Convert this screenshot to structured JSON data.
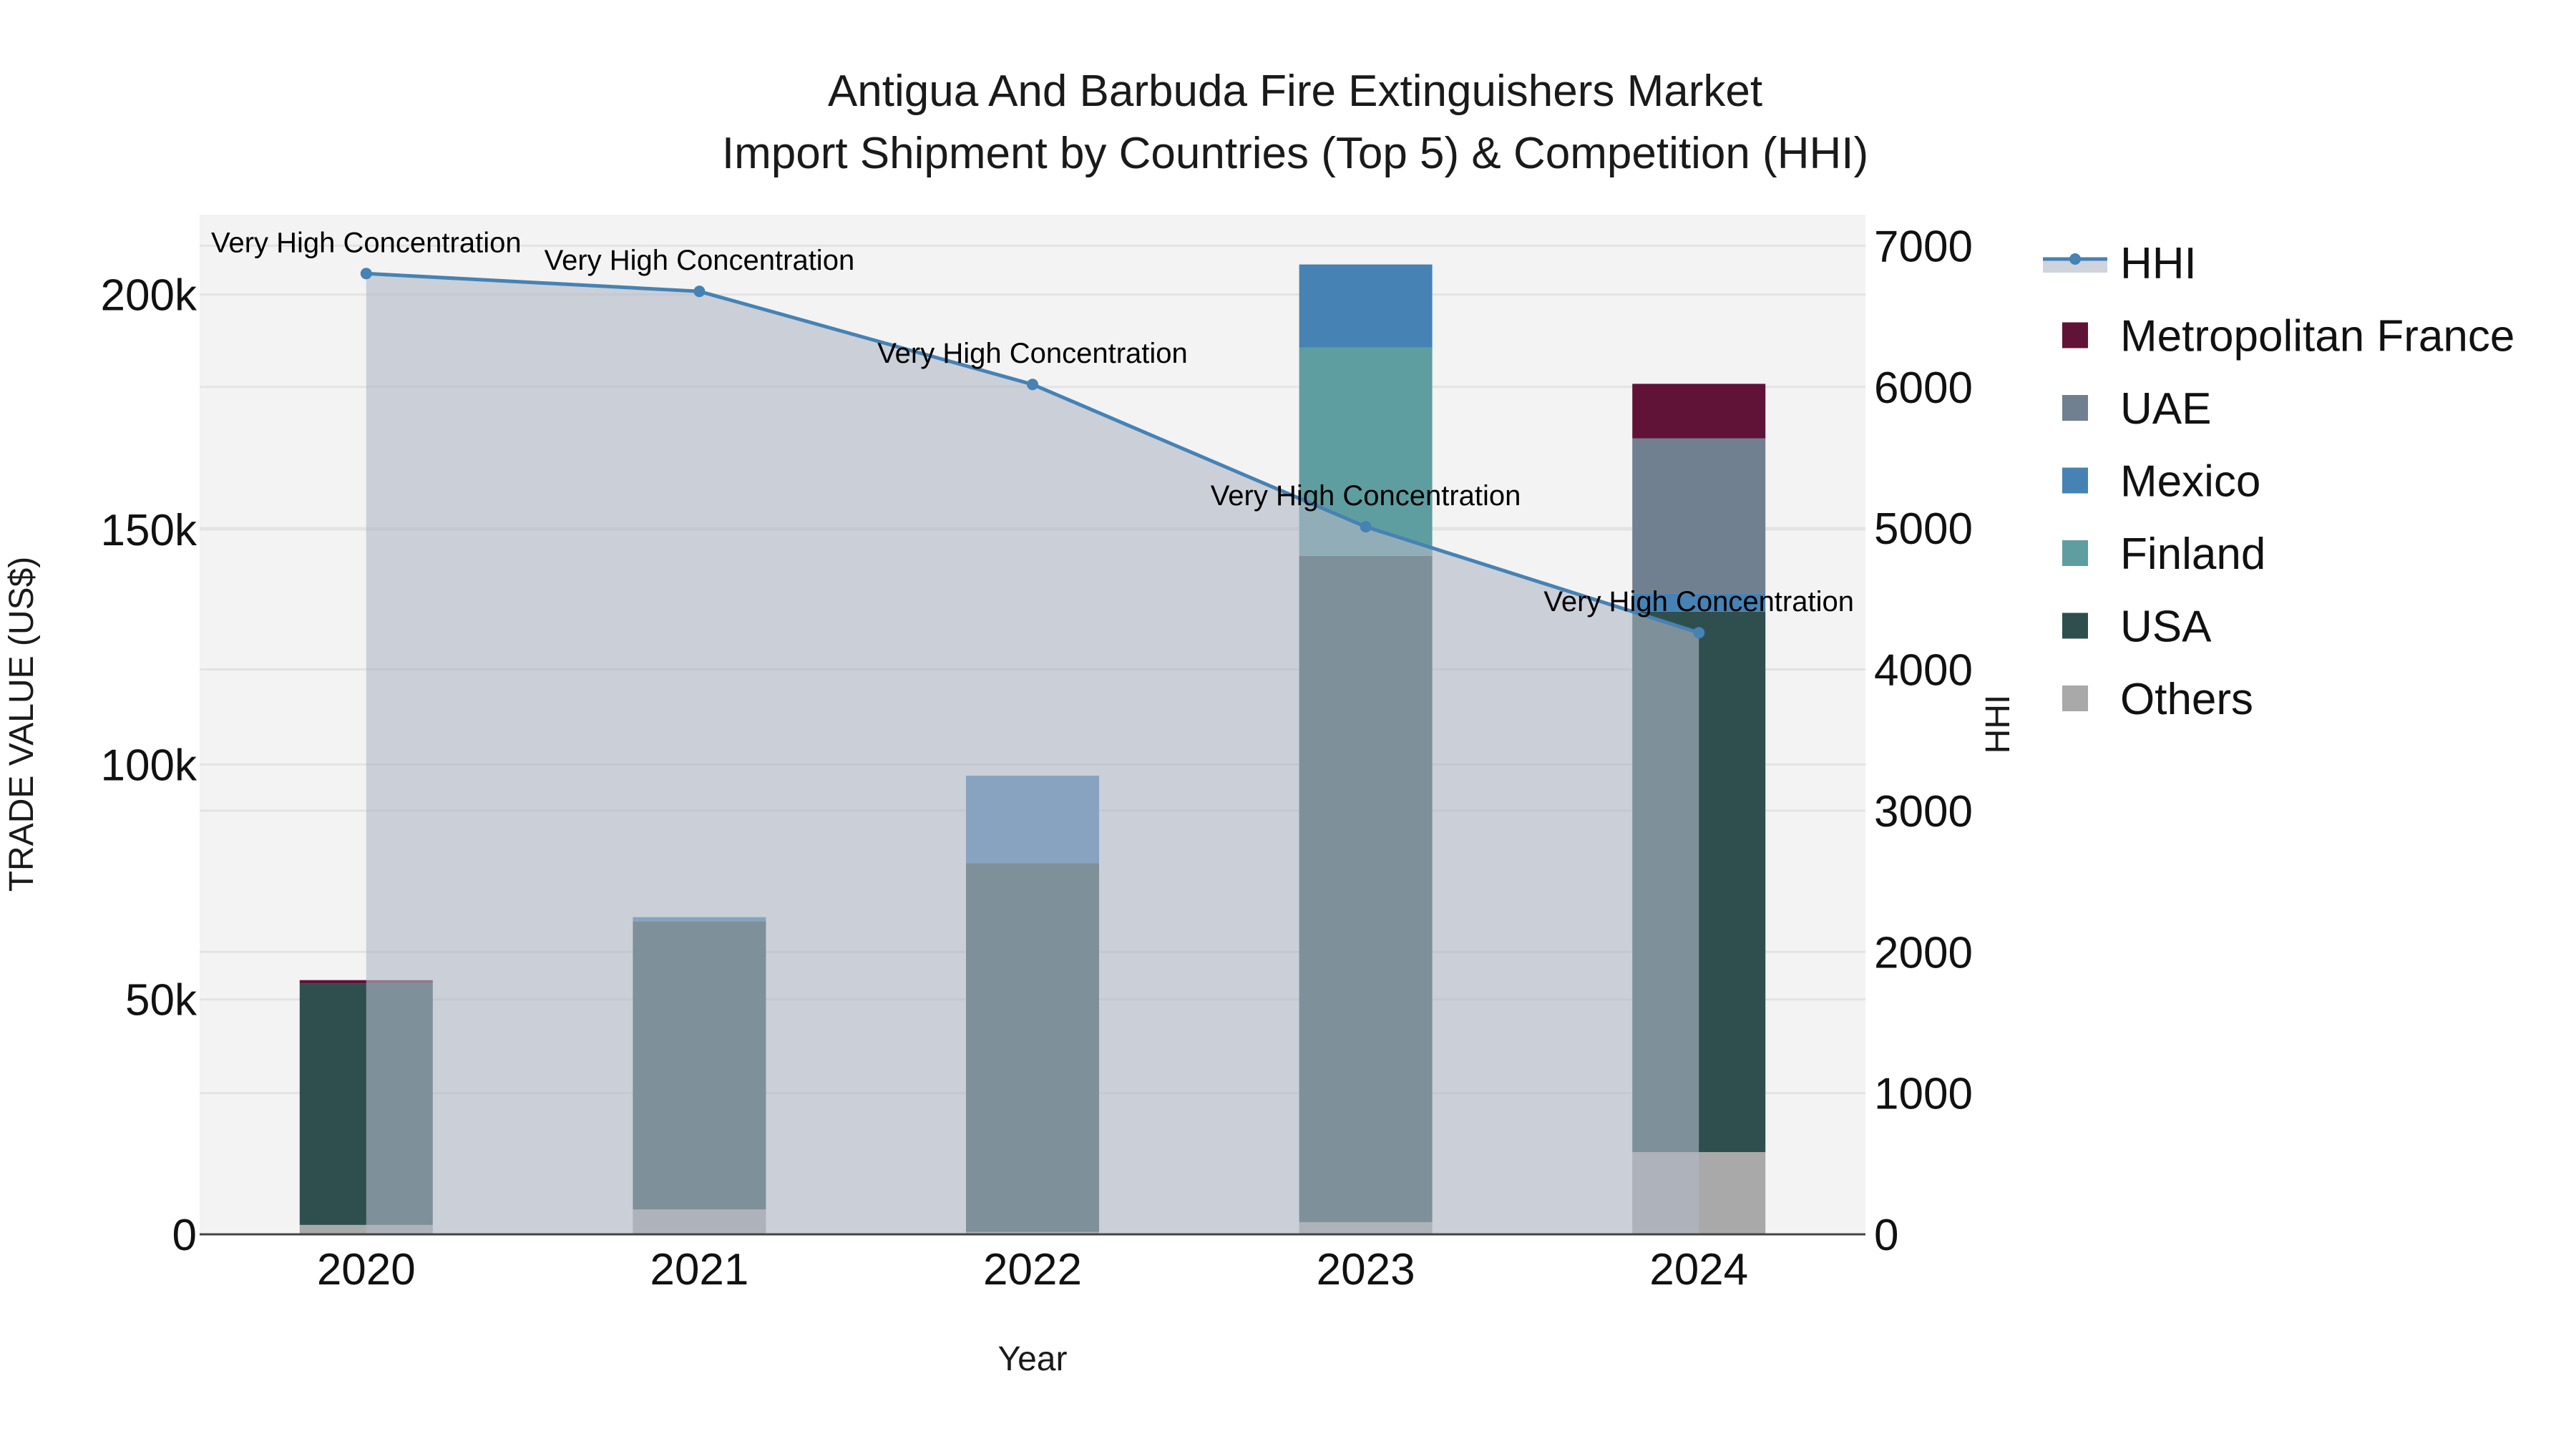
{
  "chart_data": {
    "type": "bar",
    "subtype": "stacked bar + line (dual axis)",
    "title": "Antigua And Barbuda Fire Extinguishers Market",
    "subtitle": "Import Shipment by Countries (Top 5) & Competition (HHI)",
    "xlabel": "Year",
    "ylabel": "TRADE VALUE (US$)",
    "y2label": "HHI",
    "categories": [
      "2020",
      "2021",
      "2022",
      "2023",
      "2024"
    ],
    "ylim": [
      0,
      217000
    ],
    "y2lim": [
      0,
      7220
    ],
    "yticks": [
      0,
      50000,
      100000,
      150000,
      200000
    ],
    "ytick_labels": [
      "0",
      "50k",
      "100k",
      "150k",
      "200k"
    ],
    "y2ticks": [
      0,
      1000,
      2000,
      3000,
      4000,
      5000,
      6000,
      7000
    ],
    "y2tick_labels": [
      "0",
      "1000",
      "2000",
      "3000",
      "4000",
      "5000",
      "6000",
      "7000"
    ],
    "grid": true,
    "legend_position": "right",
    "series": [
      {
        "name": "Others",
        "type": "bar",
        "color": "#a9a9a9",
        "values": [
          2000,
          5300,
          500,
          2600,
          17500
        ]
      },
      {
        "name": "USA",
        "type": "bar",
        "color": "#2f4f4f",
        "values": [
          51400,
          61300,
          78500,
          141800,
          115000
        ]
      },
      {
        "name": "Finland",
        "type": "bar",
        "color": "#5f9ea0",
        "values": [
          0,
          0,
          0,
          44300,
          0
        ]
      },
      {
        "name": "Mexico",
        "type": "bar",
        "color": "#4682b4",
        "values": [
          0,
          900,
          18600,
          17700,
          3800
        ]
      },
      {
        "name": "UAE",
        "type": "bar",
        "color": "#708090",
        "values": [
          0,
          0,
          0,
          0,
          33100
        ]
      },
      {
        "name": "Metropolitan France",
        "type": "bar",
        "color": "#601336",
        "values": [
          700,
          0,
          0,
          0,
          11600
        ]
      },
      {
        "name": "HHI",
        "type": "line",
        "axis": "y2",
        "color": "#4682b4",
        "fill": "tozeroy",
        "values": [
          6803,
          6677,
          6018,
          5010,
          4260
        ],
        "annotations": [
          "Very High Concentration",
          "Very High Concentration",
          "Very High Concentration",
          "Very High Concentration",
          "Very High Concentration"
        ]
      }
    ]
  },
  "legend": {
    "items": [
      {
        "label": "HHI",
        "kind": "line",
        "color": "#4682b4"
      },
      {
        "label": "Metropolitan France",
        "kind": "box",
        "color": "#601336"
      },
      {
        "label": "UAE",
        "kind": "box",
        "color": "#708090"
      },
      {
        "label": "Mexico",
        "kind": "box",
        "color": "#4682b4"
      },
      {
        "label": "Finland",
        "kind": "box",
        "color": "#5f9ea0"
      },
      {
        "label": "USA",
        "kind": "box",
        "color": "#2f4f4f"
      },
      {
        "label": "Others",
        "kind": "box",
        "color": "#a9a9a9"
      }
    ]
  },
  "colors": {
    "plot_bg": "#f3f3f3",
    "grid": "#e3e3e3",
    "hhi_fill": "rgba(176,184,199,0.62)",
    "axis_line": "#444444"
  }
}
